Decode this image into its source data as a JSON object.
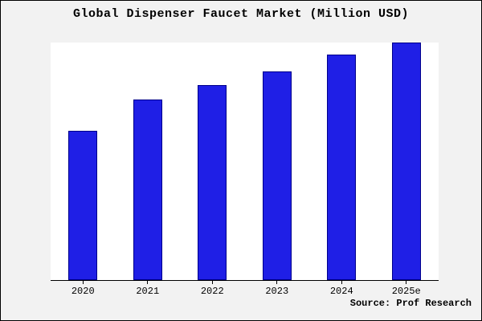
{
  "chart": {
    "source": "Source: Prof Research"
  },
  "chart_data": {
    "type": "bar",
    "title": "Global Dispenser Faucet Market (Million USD)",
    "categories": [
      "2020",
      "2021",
      "2022",
      "2023",
      "2024",
      "2025e"
    ],
    "values": [
      63,
      76,
      82,
      88,
      95,
      100
    ],
    "xlabel": "",
    "ylabel": "",
    "ylim": [
      0,
      100
    ],
    "grid": false,
    "legend": false,
    "bar_color": "#1f1fe6",
    "bar_edge_color": "#00008b",
    "background_color": "#f2f2f2",
    "plot_background_color": "#ffffff"
  }
}
